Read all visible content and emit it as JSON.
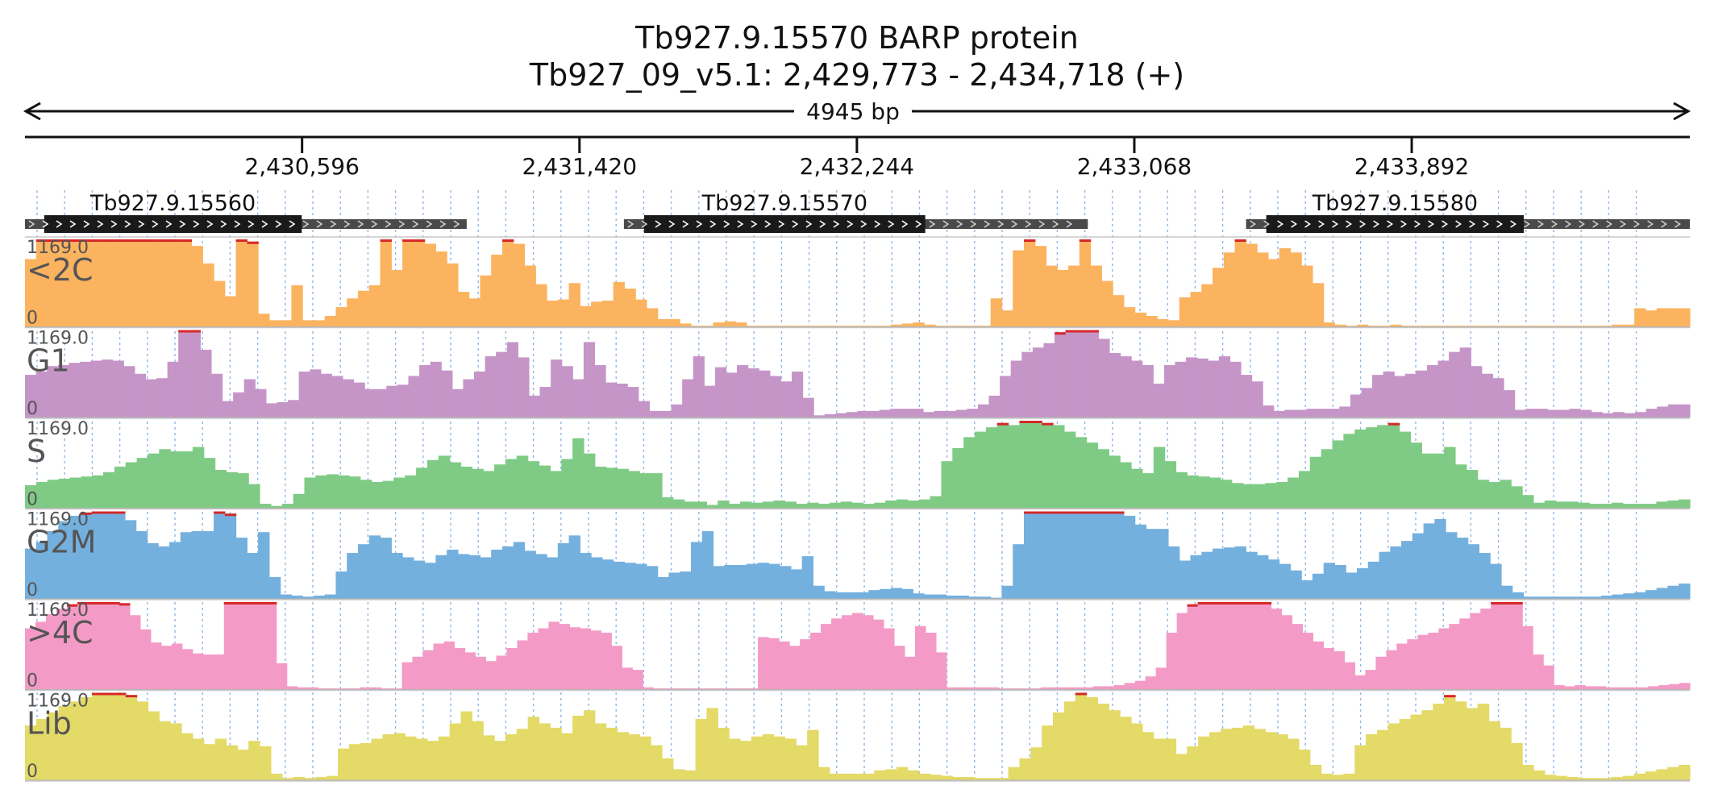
{
  "header": {
    "line1": "Tb927.9.15570  BARP protein",
    "line2": "Tb927_09_v5.1: 2,429,773 - 2,434,718 (+)",
    "span_label": "4945 bp"
  },
  "chart_data": {
    "type": "area",
    "region": {
      "chromosome": "Tb927_09_v5.1",
      "start": 2429773,
      "end": 2434718,
      "strand": "+"
    },
    "ticks": [
      {
        "pos": 2430596,
        "label": "2,430,596"
      },
      {
        "pos": 2431420,
        "label": "2,431,420"
      },
      {
        "pos": 2432244,
        "label": "2,432,244"
      },
      {
        "pos": 2433068,
        "label": "2,433,068"
      },
      {
        "pos": 2433892,
        "label": "2,433,892"
      }
    ],
    "genes": [
      {
        "name": "Tb927.9.15560",
        "utr_start": 2429773,
        "cds_start": 2429830,
        "cds_end": 2430595,
        "utr_end": 2431085
      },
      {
        "name": "Tb927.9.15570",
        "utr_start": 2431552,
        "cds_start": 2431612,
        "cds_end": 2432447,
        "utr_end": 2432930
      },
      {
        "name": "Tb927.9.15580",
        "utr_start": 2433400,
        "cds_start": 2433460,
        "cds_end": 2434225,
        "utr_end": 2434718
      }
    ],
    "y_range": [
      0,
      1169.0
    ],
    "y_max_label": "1169.0",
    "y_min_label": "0",
    "clip_color": "#d62728",
    "tracks": [
      {
        "name": "<2C",
        "color": "#fbb35f",
        "values": [
          620,
          800,
          800,
          800,
          800,
          800,
          800,
          800,
          800,
          800,
          800,
          800,
          800,
          800,
          800,
          740,
          580,
          420,
          280,
          800,
          780,
          120,
          60,
          60,
          380,
          60,
          60,
          100,
          180,
          260,
          330,
          380,
          800,
          520,
          800,
          800,
          760,
          690,
          580,
          320,
          260,
          470,
          660,
          800,
          760,
          560,
          390,
          240,
          250,
          400,
          190,
          230,
          240,
          410,
          350,
          250,
          170,
          70,
          70,
          30,
          10,
          10,
          40,
          50,
          40,
          10,
          10,
          10,
          10,
          10,
          10,
          10,
          10,
          10,
          10,
          10,
          10,
          10,
          20,
          30,
          40,
          20,
          10,
          10,
          10,
          10,
          10,
          260,
          150,
          700,
          800,
          740,
          560,
          520,
          560,
          800,
          560,
          420,
          290,
          180,
          130,
          100,
          70,
          60,
          270,
          320,
          390,
          540,
          680,
          800,
          760,
          680,
          620,
          720,
          680,
          560,
          400,
          40,
          20,
          10,
          20,
          10,
          10,
          20,
          10,
          10,
          10,
          10,
          10,
          10,
          10,
          10,
          10,
          10,
          10,
          10,
          10,
          10,
          10,
          10,
          10,
          10,
          10,
          20,
          20,
          170,
          150,
          170,
          170,
          170
        ]
      },
      {
        "name": "G1",
        "color": "#c595c8",
        "values": [
          390,
          420,
          470,
          480,
          500,
          510,
          520,
          530,
          520,
          470,
          400,
          350,
          360,
          510,
          800,
          960,
          620,
          400,
          150,
          230,
          350,
          260,
          130,
          140,
          160,
          420,
          440,
          400,
          380,
          350,
          320,
          260,
          260,
          290,
          300,
          380,
          480,
          510,
          430,
          260,
          350,
          420,
          560,
          600,
          690,
          550,
          200,
          280,
          530,
          470,
          350,
          690,
          480,
          320,
          310,
          280,
          150,
          60,
          60,
          120,
          350,
          560,
          290,
          460,
          410,
          480,
          450,
          430,
          380,
          330,
          420,
          180,
          20,
          30,
          40,
          50,
          60,
          60,
          70,
          80,
          80,
          80,
          50,
          60,
          60,
          70,
          80,
          120,
          200,
          380,
          520,
          600,
          640,
          680,
          780,
          880,
          970,
          950,
          720,
          590,
          560,
          520,
          480,
          310,
          480,
          510,
          550,
          540,
          520,
          560,
          510,
          390,
          330,
          110,
          60,
          70,
          70,
          80,
          80,
          80,
          100,
          210,
          270,
          390,
          420,
          380,
          400,
          430,
          480,
          520,
          600,
          640,
          470,
          400,
          360,
          250,
          70,
          80,
          80,
          70,
          70,
          80,
          70,
          50,
          40,
          50,
          40,
          50,
          80,
          100,
          120,
          120
        ]
      },
      {
        "name": "S",
        "color": "#7fcb85",
        "values": [
          210,
          240,
          260,
          270,
          280,
          290,
          300,
          330,
          380,
          420,
          460,
          500,
          540,
          520,
          520,
          560,
          460,
          350,
          330,
          320,
          220,
          40,
          20,
          40,
          130,
          280,
          300,
          310,
          300,
          290,
          260,
          240,
          250,
          280,
          300,
          370,
          440,
          480,
          420,
          380,
          360,
          340,
          400,
          450,
          480,
          430,
          390,
          340,
          450,
          640,
          500,
          380,
          370,
          360,
          340,
          320,
          320,
          100,
          80,
          60,
          60,
          30,
          70,
          40,
          60,
          50,
          60,
          70,
          60,
          40,
          50,
          40,
          50,
          60,
          50,
          40,
          50,
          70,
          80,
          70,
          80,
          110,
          430,
          550,
          650,
          700,
          740,
          780,
          760,
          800,
          800,
          780,
          760,
          700,
          650,
          600,
          540,
          480,
          420,
          360,
          320,
          560,
          430,
          330,
          300,
          290,
          280,
          260,
          230,
          220,
          220,
          230,
          240,
          280,
          340,
          470,
          540,
          620,
          680,
          720,
          740,
          760,
          780,
          700,
          600,
          500,
          500,
          560,
          400,
          350,
          260,
          240,
          260,
          200,
          120,
          50,
          70,
          60,
          60,
          50,
          40,
          40,
          50,
          40,
          40,
          40,
          60,
          70,
          80
        ]
      },
      {
        "name": "G2M",
        "color": "#74b0de",
        "values": [
          460,
          520,
          620,
          710,
          760,
          790,
          800,
          800,
          800,
          720,
          620,
          510,
          480,
          520,
          610,
          620,
          620,
          800,
          780,
          560,
          420,
          610,
          200,
          40,
          30,
          20,
          30,
          40,
          250,
          420,
          500,
          580,
          560,
          420,
          380,
          350,
          330,
          400,
          450,
          410,
          400,
          380,
          450,
          480,
          520,
          440,
          410,
          380,
          510,
          580,
          420,
          380,
          360,
          340,
          330,
          320,
          300,
          200,
          240,
          250,
          520,
          620,
          300,
          310,
          310,
          320,
          330,
          320,
          300,
          270,
          390,
          120,
          70,
          60,
          60,
          60,
          80,
          90,
          100,
          90,
          50,
          40,
          40,
          30,
          30,
          20,
          20,
          10,
          120,
          500,
          800,
          800,
          800,
          800,
          800,
          800,
          800,
          800,
          800,
          760,
          680,
          640,
          640,
          480,
          350,
          400,
          430,
          460,
          470,
          480,
          430,
          400,
          360,
          320,
          260,
          170,
          230,
          330,
          310,
          240,
          280,
          340,
          430,
          480,
          530,
          600,
          690,
          730,
          610,
          560,
          500,
          420,
          320,
          120,
          60,
          20,
          20,
          20,
          20,
          20,
          20,
          20,
          30,
          40,
          50,
          60,
          80,
          100,
          120,
          140
        ]
      },
      {
        "name": ">4C",
        "color": "#f39bc6",
        "values": [
          560,
          620,
          690,
          740,
          780,
          800,
          800,
          800,
          800,
          790,
          680,
          550,
          430,
          400,
          420,
          370,
          330,
          320,
          320,
          800,
          800,
          800,
          800,
          800,
          240,
          30,
          20,
          20,
          10,
          10,
          10,
          10,
          20,
          20,
          10,
          10,
          250,
          300,
          360,
          420,
          440,
          380,
          340,
          300,
          260,
          310,
          380,
          450,
          520,
          560,
          620,
          600,
          570,
          560,
          540,
          520,
          400,
          200,
          180,
          20,
          10,
          10,
          10,
          10,
          10,
          10,
          10,
          10,
          10,
          10,
          480,
          470,
          440,
          400,
          460,
          520,
          600,
          650,
          680,
          700,
          680,
          640,
          560,
          400,
          300,
          580,
          520,
          340,
          20,
          20,
          20,
          20,
          20,
          10,
          10,
          10,
          10,
          20,
          20,
          20,
          20,
          20,
          30,
          30,
          40,
          60,
          80,
          120,
          200,
          520,
          700,
          780,
          800,
          800,
          800,
          800,
          800,
          800,
          800,
          740,
          680,
          600,
          520,
          440,
          380,
          350,
          250,
          130,
          180,
          300,
          360,
          420,
          460,
          500,
          520,
          560,
          600,
          650,
          700,
          740,
          800,
          800,
          800,
          580,
          320,
          220,
          40,
          30,
          40,
          30,
          30,
          20,
          20,
          20,
          20,
          30,
          40,
          50,
          60
        ]
      },
      {
        "name": "Lib",
        "color": "#e3da67",
        "values": [
          500,
          560,
          620,
          680,
          720,
          760,
          800,
          800,
          800,
          780,
          720,
          630,
          540,
          520,
          430,
          380,
          330,
          380,
          320,
          280,
          360,
          310,
          60,
          20,
          30,
          20,
          30,
          40,
          290,
          330,
          340,
          380,
          420,
          430,
          400,
          380,
          360,
          400,
          520,
          630,
          540,
          410,
          360,
          420,
          470,
          580,
          520,
          480,
          430,
          590,
          640,
          520,
          480,
          440,
          420,
          400,
          320,
          200,
          100,
          90,
          560,
          660,
          480,
          380,
          360,
          400,
          420,
          400,
          380,
          320,
          460,
          120,
          60,
          60,
          60,
          60,
          90,
          100,
          120,
          90,
          60,
          50,
          40,
          30,
          30,
          20,
          20,
          20,
          120,
          200,
          300,
          500,
          620,
          720,
          800,
          760,
          700,
          640,
          580,
          520,
          440,
          380,
          380,
          240,
          310,
          400,
          440,
          470,
          480,
          500,
          470,
          440,
          420,
          380,
          280,
          140,
          60,
          50,
          60,
          320,
          420,
          460,
          520,
          560,
          600,
          640,
          700,
          780,
          720,
          660,
          700,
          540,
          480,
          340,
          140,
          90,
          50,
          40,
          30,
          20,
          20,
          20,
          30,
          40,
          60,
          80,
          100,
          120,
          140
        ]
      }
    ]
  }
}
